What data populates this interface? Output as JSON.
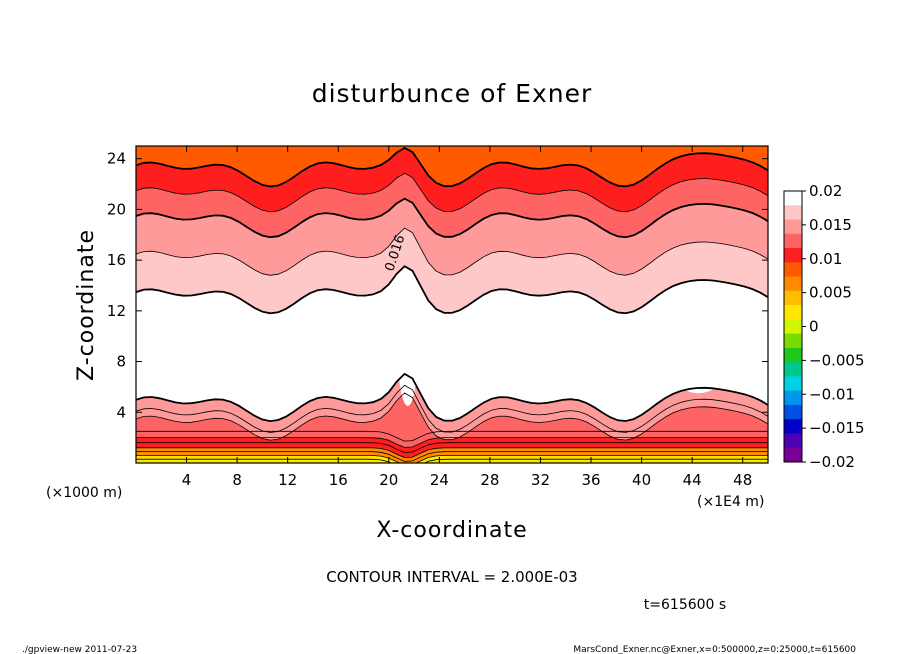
{
  "chart_data": {
    "type": "heatmap",
    "title": "disturbunce of Exner",
    "xlabel": "X-coordinate",
    "ylabel": "Z-coordinate",
    "x_unit_left": "(×1000 m)",
    "x_unit_right": "(×1E4 m)",
    "xlim": [
      0,
      50
    ],
    "ylim": [
      0,
      25
    ],
    "x_ticks": [
      4,
      8,
      12,
      16,
      20,
      24,
      28,
      32,
      36,
      40,
      44,
      48
    ],
    "y_ticks": [
      4,
      8,
      12,
      16,
      20,
      24
    ],
    "x_tick_labels": [
      "4",
      "8",
      "12",
      "16",
      "20",
      "24",
      "28",
      "32",
      "36",
      "40",
      "44",
      "48"
    ],
    "y_tick_labels": [
      "4",
      "8",
      "12",
      "16",
      "20",
      "24"
    ],
    "colorbar": {
      "min": -0.02,
      "max": 0.02,
      "levels": [
        0.02,
        0.015,
        0.01,
        0.005,
        0,
        -0.005,
        -0.01,
        -0.015,
        -0.02
      ],
      "labels": [
        "0.02",
        "0.015",
        "0.01",
        "0.005",
        "0",
        "−0.005",
        "−0.01",
        "−0.015",
        "−0.02"
      ],
      "colors": [
        "#ffffff",
        "#ffc8c8",
        "#ff9a9a",
        "#ff6464",
        "#ff1e1e",
        "#ff5a00",
        "#ff8c00",
        "#ffbe00",
        "#ffe600",
        "#d2f500",
        "#78dc00",
        "#1ec81e",
        "#00c88c",
        "#00d2e6",
        "#0096f0",
        "#0050e6",
        "#0000c8",
        "#5000b4",
        "#780096"
      ]
    },
    "field_description_levels": [
      {
        "z_top": 0.6,
        "value": 0.003
      },
      {
        "z_top": 1.2,
        "value": 0.006
      },
      {
        "z_top": 2.0,
        "value": 0.01
      },
      {
        "z_top": 3.0,
        "value": 0.013
      },
      {
        "z_top": 4.5,
        "value": 0.0155
      },
      {
        "z_top": 9.0,
        "value": 0.0195
      },
      {
        "z_top": 13.0,
        "value": 0.018
      },
      {
        "z_top": 16.0,
        "value": 0.017
      },
      {
        "z_top": 19.0,
        "value": 0.0155
      },
      {
        "z_top": 21.0,
        "value": 0.0135
      },
      {
        "z_top": 23.0,
        "value": 0.0115
      },
      {
        "z_top": 25.0,
        "value": 0.009
      }
    ],
    "contour_label": "0.016",
    "contour_interval_text": "CONTOUR INTERVAL = 2.000E-03",
    "time_text": "t=615600 s"
  },
  "footer": {
    "left": "./gpview-new   2011-07-23",
    "right": "MarsCond_Exner.nc@Exner,x=0:500000,z=0:25000,t=615600"
  }
}
